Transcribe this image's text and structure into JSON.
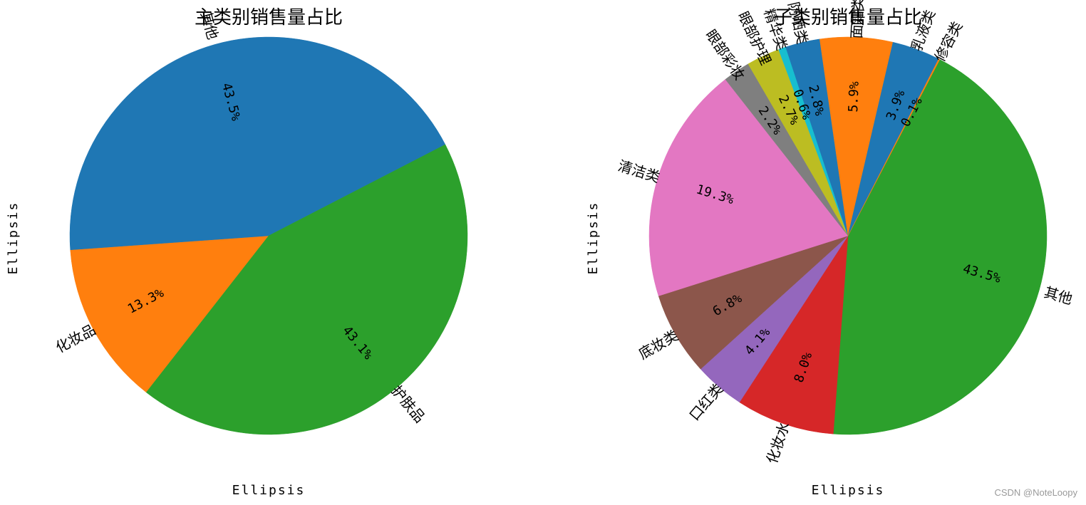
{
  "chart_data": [
    {
      "type": "pie",
      "title": "主类别销售量占比",
      "xlabel": "Ellipsis",
      "ylabel": "Ellipsis",
      "start_angle_deg": 0,
      "slices": [
        {
          "label": "其他",
          "value": 43.5,
          "pct_text": "43.5%",
          "color": "#1f77b4"
        },
        {
          "label": "护肤品",
          "value": 43.1,
          "pct_text": "43.1%",
          "color": "#2ca02c"
        },
        {
          "label": "化妆品",
          "value": 13.3,
          "pct_text": "13.3%",
          "color": "#ff7f0e"
        }
      ],
      "slice_order": [
        2,
        0,
        1
      ]
    },
    {
      "type": "pie",
      "title": "子类别销售量占比",
      "xlabel": "Ellipsis",
      "ylabel": "Ellipsis",
      "slices": [
        {
          "label": "其他",
          "value": 43.5,
          "pct_text": "43.5%",
          "color": "#2ca02c"
        },
        {
          "label": "化妆水",
          "value": 8.0,
          "pct_text": "8.0%",
          "color": "#d62728"
        },
        {
          "label": "口红类",
          "value": 4.1,
          "pct_text": "4.1%",
          "color": "#9467bd"
        },
        {
          "label": "底妆类",
          "value": 6.8,
          "pct_text": "6.8%",
          "color": "#8c564b"
        },
        {
          "label": "清洁类",
          "value": 19.3,
          "pct_text": "19.3%",
          "color": "#e377c2"
        },
        {
          "label": "眼部彩妆",
          "value": 2.2,
          "pct_text": "2.2%",
          "color": "#7f7f7f"
        },
        {
          "label": "眼部护理",
          "value": 2.7,
          "pct_text": "2.7%",
          "color": "#bcbd22"
        },
        {
          "label": "精华类",
          "value": 0.6,
          "pct_text": "0.6%",
          "color": "#17becf"
        },
        {
          "label": "防晒类",
          "value": 2.8,
          "pct_text": "2.8%",
          "color": "#1f77b4"
        },
        {
          "label": "面霜类",
          "value": 5.9,
          "pct_text": "5.9%",
          "color": "#ff7f0e"
        },
        {
          "label": "乳液类",
          "value": 3.9,
          "pct_text": "3.9%",
          "color": "#1f77b4"
        },
        {
          "label": "修容类",
          "value": 0.1,
          "pct_text": "0.1%",
          "color": "#ff7f0e"
        }
      ]
    }
  ],
  "watermark": "CSDN @NoteLoopy"
}
